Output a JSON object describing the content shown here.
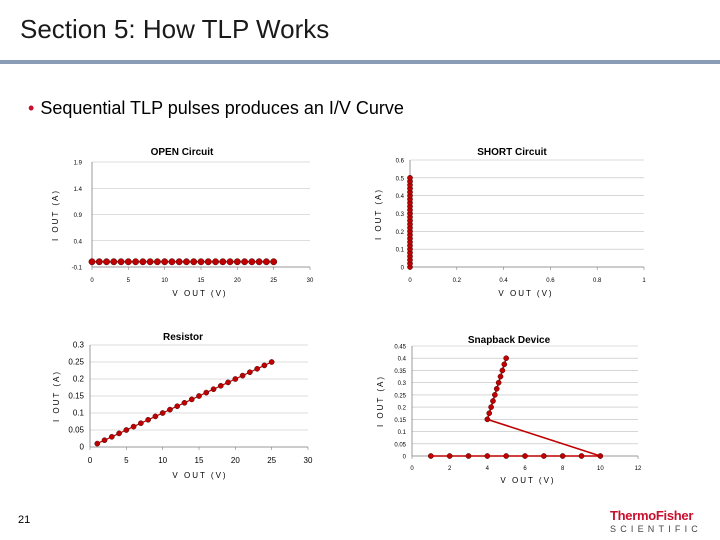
{
  "slide": {
    "title": "Section 5: How TLP Works",
    "bullet": "Sequential TLP pulses produces an I/V Curve",
    "page_number": "21",
    "logo_top": "ThermoFisher",
    "logo_bottom": "SCIENTIFIC",
    "accent_color": "#c8102e",
    "rule_color": "#8a9bb5"
  },
  "chart_data": [
    {
      "type": "scatter",
      "title": "OPEN Circuit",
      "xlabel": "V OUT (V)",
      "ylabel": "I OUT (A)",
      "xlim": [
        0,
        30
      ],
      "ylim": [
        -0.1,
        1.9
      ],
      "x_ticks": [
        "0",
        "5",
        "10",
        "15",
        "20",
        "25",
        "30"
      ],
      "y_ticks": [
        "-0.1",
        "0.4",
        "0.9",
        "1.4",
        "1.9"
      ],
      "grid": true,
      "legend": "none",
      "series_color": "#c00000",
      "points": {
        "x": [
          0,
          1,
          2,
          3,
          4,
          5,
          6,
          7,
          8,
          9,
          10,
          11,
          12,
          13,
          14,
          15,
          16,
          17,
          18,
          19,
          20,
          21,
          22,
          23,
          24,
          25
        ],
        "y": [
          0,
          0,
          0,
          0,
          0,
          0,
          0,
          0,
          0,
          0,
          0,
          0,
          0,
          0,
          0,
          0,
          0,
          0,
          0,
          0,
          0,
          0,
          0,
          0,
          0,
          0
        ]
      }
    },
    {
      "type": "scatter",
      "title": "SHORT Circuit",
      "xlabel": "V OUT (V)",
      "ylabel": "I OUT (A)",
      "xlim": [
        0,
        1
      ],
      "ylim": [
        0,
        0.6
      ],
      "x_ticks": [
        "0",
        "0.2",
        "0.4",
        "0.6",
        "0.8",
        "1"
      ],
      "y_ticks": [
        "0",
        "0.1",
        "0.2",
        "0.3",
        "0.4",
        "0.5",
        "0.6"
      ],
      "grid": true,
      "legend": "none",
      "series_color": "#c00000",
      "points": {
        "x": [
          0,
          0,
          0,
          0,
          0,
          0,
          0,
          0,
          0,
          0,
          0,
          0,
          0,
          0,
          0,
          0,
          0,
          0,
          0,
          0,
          0,
          0,
          0,
          0,
          0,
          0
        ],
        "y": [
          0.0,
          0.02,
          0.04,
          0.06,
          0.08,
          0.1,
          0.12,
          0.14,
          0.16,
          0.18,
          0.2,
          0.22,
          0.24,
          0.26,
          0.28,
          0.3,
          0.32,
          0.34,
          0.36,
          0.38,
          0.4,
          0.42,
          0.44,
          0.46,
          0.48,
          0.5
        ]
      }
    },
    {
      "type": "line",
      "title": "Resistor",
      "xlabel": "V OUT (V)",
      "ylabel": "I OUT (A)",
      "xlim": [
        0,
        30
      ],
      "ylim": [
        0,
        0.3
      ],
      "x_ticks": [
        "0",
        "5",
        "10",
        "15",
        "20",
        "25",
        "30"
      ],
      "y_ticks": [
        "0",
        "0.05",
        "0.1",
        "0.15",
        "0.2",
        "0.25",
        "0.3"
      ],
      "grid": true,
      "legend": "none",
      "series_color": "#c00000",
      "points": {
        "x": [
          1,
          2,
          3,
          4,
          5,
          6,
          7,
          8,
          9,
          10,
          11,
          12,
          13,
          14,
          15,
          16,
          17,
          18,
          19,
          20,
          21,
          22,
          23,
          24,
          25
        ],
        "y": [
          0.01,
          0.02,
          0.03,
          0.04,
          0.05,
          0.06,
          0.07,
          0.08,
          0.09,
          0.1,
          0.11,
          0.12,
          0.13,
          0.14,
          0.15,
          0.16,
          0.17,
          0.18,
          0.19,
          0.2,
          0.21,
          0.22,
          0.23,
          0.24,
          0.25
        ]
      }
    },
    {
      "type": "line",
      "title": "Snapback Device",
      "xlabel": "V OUT (V)",
      "ylabel": "I OUT (A)",
      "xlim": [
        0,
        12
      ],
      "ylim": [
        0,
        0.45
      ],
      "x_ticks": [
        "0",
        "2",
        "4",
        "6",
        "8",
        "10",
        "12"
      ],
      "y_ticks": [
        "0",
        "0.05",
        "0.1",
        "0.15",
        "0.2",
        "0.25",
        "0.3",
        "0.35",
        "0.4",
        "0.45"
      ],
      "grid": true,
      "legend": "none",
      "series_color": "#c00000",
      "points": {
        "x": [
          1,
          2,
          3,
          4,
          5,
          6,
          7,
          8,
          9,
          10,
          4.0,
          4.1,
          4.2,
          4.3,
          4.4,
          4.5,
          4.6,
          4.7,
          4.8,
          4.9,
          5.0
        ],
        "y": [
          0,
          0,
          0,
          0,
          0,
          0,
          0,
          0,
          0,
          0,
          0.15,
          0.175,
          0.2,
          0.225,
          0.25,
          0.275,
          0.3,
          0.325,
          0.35,
          0.375,
          0.4
        ]
      },
      "line_segments": [
        {
          "x": [
            1,
            10
          ],
          "y": [
            0,
            0
          ]
        },
        {
          "x": [
            10,
            4.0
          ],
          "y": [
            0,
            0.15
          ]
        },
        {
          "x": [
            4.0,
            5.0
          ],
          "y": [
            0.15,
            0.4
          ]
        }
      ]
    }
  ]
}
